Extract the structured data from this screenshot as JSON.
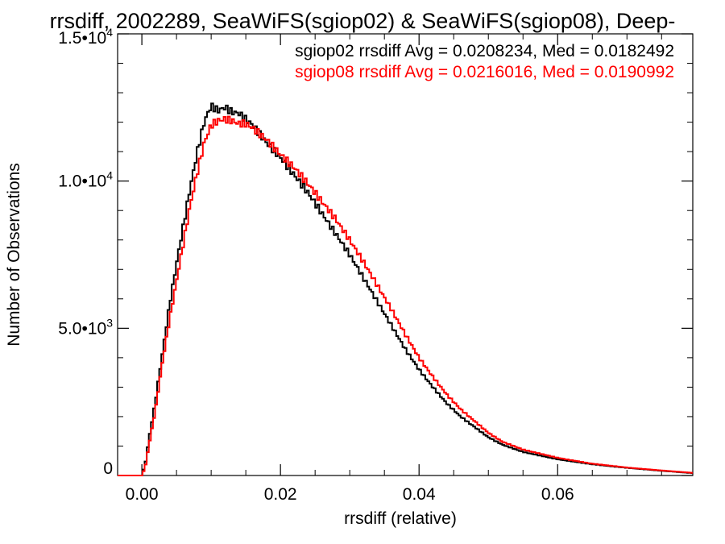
{
  "chart_data": {
    "type": "line",
    "title": "rrsdiff, 2002289, SeaWiFS(sgiop02) & SeaWiFS(sgiop08), Deep-",
    "xlabel": "rrsdiff (relative)",
    "ylabel": "Number of Observations",
    "xlim": [
      -0.0035,
      0.0795
    ],
    "ylim": [
      0,
      15000
    ],
    "x_ticks": [
      {
        "value": 0.0,
        "label": "0.00"
      },
      {
        "value": 0.02,
        "label": "0.02"
      },
      {
        "value": 0.04,
        "label": "0.04"
      },
      {
        "value": 0.06,
        "label": "0.06"
      }
    ],
    "y_ticks": [
      {
        "value": 0,
        "label": "0"
      },
      {
        "value": 5000,
        "label": "5.0•10",
        "exp": "3"
      },
      {
        "value": 10000,
        "label": "1.0•10",
        "exp": "4"
      },
      {
        "value": 15000,
        "label": "1.5•10",
        "exp": "4"
      }
    ],
    "grid": false,
    "legend_position": "top-right",
    "series": [
      {
        "name": "sgiop02",
        "color": "#000000",
        "stat_label": "sgiop02 rrsdiff Avg = 0.0208234, Med = 0.0182492",
        "points": [
          [
            -0.0035,
            0
          ],
          [
            0.0,
            0
          ],
          [
            0.0005,
            400
          ],
          [
            0.001,
            1200
          ],
          [
            0.002,
            2600
          ],
          [
            0.003,
            4200
          ],
          [
            0.004,
            5800
          ],
          [
            0.005,
            7200
          ],
          [
            0.006,
            8500
          ],
          [
            0.007,
            9800
          ],
          [
            0.008,
            11000
          ],
          [
            0.009,
            12000
          ],
          [
            0.0095,
            12300
          ],
          [
            0.01,
            12550
          ],
          [
            0.011,
            12400
          ],
          [
            0.012,
            12500
          ],
          [
            0.013,
            12350
          ],
          [
            0.014,
            12300
          ],
          [
            0.015,
            12100
          ],
          [
            0.016,
            11900
          ],
          [
            0.018,
            11300
          ],
          [
            0.02,
            10800
          ],
          [
            0.022,
            10200
          ],
          [
            0.024,
            9600
          ],
          [
            0.026,
            8900
          ],
          [
            0.028,
            8200
          ],
          [
            0.03,
            7500
          ],
          [
            0.032,
            6700
          ],
          [
            0.034,
            5900
          ],
          [
            0.036,
            5100
          ],
          [
            0.038,
            4300
          ],
          [
            0.04,
            3600
          ],
          [
            0.042,
            3000
          ],
          [
            0.044,
            2450
          ],
          [
            0.046,
            2000
          ],
          [
            0.048,
            1650
          ],
          [
            0.05,
            1300
          ],
          [
            0.052,
            1050
          ],
          [
            0.055,
            800
          ],
          [
            0.06,
            550
          ],
          [
            0.065,
            380
          ],
          [
            0.07,
            260
          ],
          [
            0.075,
            160
          ],
          [
            0.0795,
            80
          ]
        ]
      },
      {
        "name": "sgiop08",
        "color": "#ff0000",
        "stat_label": "sgiop08 rrsdiff Avg = 0.0216016, Med = 0.0190992",
        "points": [
          [
            -0.0035,
            0
          ],
          [
            0.0,
            0
          ],
          [
            0.0005,
            300
          ],
          [
            0.001,
            1000
          ],
          [
            0.002,
            2300
          ],
          [
            0.003,
            3900
          ],
          [
            0.004,
            5300
          ],
          [
            0.005,
            6600
          ],
          [
            0.006,
            7900
          ],
          [
            0.007,
            9200
          ],
          [
            0.008,
            10300
          ],
          [
            0.009,
            11300
          ],
          [
            0.01,
            11900
          ],
          [
            0.011,
            12050
          ],
          [
            0.012,
            12100
          ],
          [
            0.013,
            12050
          ],
          [
            0.014,
            11950
          ],
          [
            0.015,
            11950
          ],
          [
            0.016,
            11800
          ],
          [
            0.018,
            11400
          ],
          [
            0.02,
            10900
          ],
          [
            0.022,
            10450
          ],
          [
            0.024,
            9900
          ],
          [
            0.026,
            9300
          ],
          [
            0.028,
            8700
          ],
          [
            0.03,
            8000
          ],
          [
            0.032,
            7250
          ],
          [
            0.034,
            6450
          ],
          [
            0.036,
            5650
          ],
          [
            0.038,
            4800
          ],
          [
            0.04,
            4000
          ],
          [
            0.042,
            3350
          ],
          [
            0.044,
            2750
          ],
          [
            0.046,
            2250
          ],
          [
            0.048,
            1850
          ],
          [
            0.05,
            1450
          ],
          [
            0.052,
            1150
          ],
          [
            0.055,
            880
          ],
          [
            0.06,
            600
          ],
          [
            0.065,
            400
          ],
          [
            0.07,
            270
          ],
          [
            0.075,
            170
          ],
          [
            0.0795,
            90
          ]
        ]
      }
    ]
  }
}
